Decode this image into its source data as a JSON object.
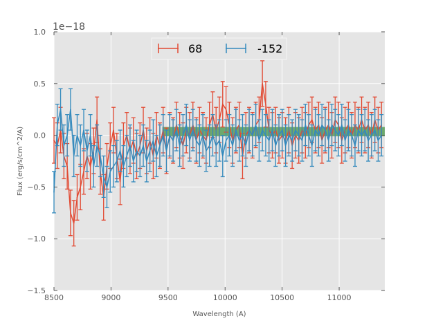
{
  "chart_data": {
    "type": "line",
    "title": "",
    "xlabel": "Wavelength (A)",
    "ylabel": "Flux (erg/s/cm^2/A)",
    "y_offset_label": "1e−18",
    "xlim": [
      8500,
      11400
    ],
    "ylim": [
      -1.5,
      1.0
    ],
    "grid": true,
    "legend_placement": "top-center",
    "x_ticks": [
      8500,
      9000,
      9500,
      10000,
      10500,
      11000
    ],
    "x_tick_labels": [
      "8500",
      "9000",
      "9500",
      "10000",
      "10500",
      "11000"
    ],
    "y_ticks": [
      1.0,
      0.5,
      0.0,
      -0.5,
      -1.0,
      -1.5
    ],
    "y_tick_labels": [
      "1.0",
      "0.5",
      "0.0",
      "−0.5",
      "−1.0",
      "−1.5"
    ],
    "x": [
      8500,
      8529,
      8558,
      8587,
      8616,
      8645,
      8674,
      8703,
      8732,
      8761,
      8790,
      8819,
      8848,
      8877,
      8906,
      8935,
      8964,
      8993,
      9022,
      9051,
      9080,
      9109,
      9138,
      9167,
      9196,
      9225,
      9254,
      9283,
      9312,
      9341,
      9370,
      9399,
      9428,
      9457,
      9486,
      9515,
      9544,
      9573,
      9602,
      9631,
      9660,
      9689,
      9718,
      9747,
      9776,
      9805,
      9834,
      9863,
      9892,
      9921,
      9950,
      9979,
      10008,
      10037,
      10066,
      10095,
      10124,
      10153,
      10182,
      10211,
      10240,
      10269,
      10298,
      10327,
      10356,
      10385,
      10414,
      10443,
      10472,
      10501,
      10530,
      10559,
      10588,
      10617,
      10646,
      10675,
      10704,
      10733,
      10762,
      10791,
      10820,
      10849,
      10878,
      10907,
      10936,
      10965,
      10994,
      11023,
      11052,
      11081,
      11110,
      11139,
      11168,
      11197,
      11226,
      11255,
      11284,
      11313,
      11342,
      11371
    ],
    "series": [
      {
        "name": "68",
        "color": "#e24a33",
        "yerr": 0.22,
        "values": [
          -0.05,
          -0.1,
          0.05,
          -0.2,
          -0.3,
          -0.75,
          -0.85,
          -0.6,
          -0.5,
          -0.35,
          -0.2,
          -0.3,
          -0.15,
          0.15,
          -0.35,
          -0.6,
          -0.3,
          -0.1,
          0.05,
          -0.2,
          -0.45,
          -0.1,
          0.0,
          -0.15,
          -0.05,
          -0.2,
          -0.1,
          0.05,
          -0.15,
          -0.05,
          -0.2,
          0.0,
          -0.1,
          0.05,
          -0.15,
          0.0,
          -0.05,
          0.1,
          0.0,
          -0.1,
          0.05,
          0.0,
          0.1,
          -0.05,
          0.05,
          0.0,
          -0.05,
          0.1,
          0.2,
          0.05,
          0.15,
          0.3,
          0.25,
          0.1,
          -0.05,
          0.05,
          0.1,
          -0.2,
          0.0,
          0.05,
          0.0,
          0.1,
          0.15,
          0.5,
          0.3,
          0.05,
          0.0,
          0.05,
          -0.05,
          0.0,
          -0.05,
          0.05,
          -0.1,
          0.0,
          -0.05,
          0.05,
          0.0,
          0.1,
          0.15,
          0.05,
          0.1,
          -0.05,
          0.05,
          0.1,
          0.0,
          0.15,
          0.1,
          -0.05,
          0.05,
          0.1,
          0.0,
          0.1,
          0.05,
          0.15,
          0.05,
          0.1,
          0.0,
          0.15,
          0.05,
          0.1
        ]
      },
      {
        "name": "-152",
        "color": "#348abd",
        "yerr": 0.2,
        "values": [
          -0.55,
          0.1,
          0.25,
          -0.1,
          0.0,
          0.25,
          -0.2,
          0.0,
          -0.1,
          0.05,
          -0.15,
          0.0,
          -0.3,
          -0.1,
          -0.2,
          -0.4,
          -0.5,
          -0.35,
          -0.3,
          -0.25,
          -0.15,
          -0.3,
          -0.2,
          -0.1,
          -0.25,
          -0.15,
          -0.2,
          -0.1,
          -0.25,
          -0.15,
          -0.05,
          -0.2,
          -0.1,
          0.0,
          -0.15,
          0.0,
          -0.05,
          0.05,
          -0.1,
          0.0,
          0.1,
          -0.05,
          0.05,
          -0.05,
          -0.1,
          0.0,
          -0.15,
          -0.1,
          0.0,
          -0.1,
          -0.05,
          -0.2,
          -0.05,
          0.0,
          -0.1,
          0.05,
          -0.05,
          0.0,
          -0.1,
          0.05,
          0.0,
          0.1,
          -0.05,
          0.05,
          0.0,
          -0.05,
          0.05,
          -0.1,
          0.0,
          0.05,
          -0.1,
          0.0,
          -0.05,
          0.05,
          0.0,
          -0.05,
          0.1,
          0.0,
          -0.1,
          0.05,
          0.0,
          0.1,
          0.05,
          -0.05,
          0.1,
          0.05,
          0.0,
          0.1,
          -0.05,
          0.05,
          0.0,
          -0.1,
          0.05,
          0.0,
          0.05,
          -0.05,
          0.0,
          0.05,
          -0.05,
          0.0
        ]
      }
    ],
    "band": {
      "x_range": [
        9450,
        11400
      ],
      "y_range": [
        -0.01,
        0.08
      ],
      "color": "#4f9a4f"
    }
  }
}
